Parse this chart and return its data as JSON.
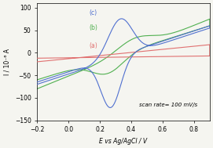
{
  "title": "",
  "xlabel": "E vs Ag/AgCl / V",
  "ylabel": "I / 10⁻⁶ A",
  "xlim": [
    -0.2,
    0.9
  ],
  "ylim": [
    -150,
    110
  ],
  "yticks": [
    -150,
    -100,
    -50,
    0,
    50,
    100
  ],
  "xticks": [
    -0.2,
    0.0,
    0.2,
    0.4,
    0.6,
    0.8
  ],
  "annotation": "scan rate= 100 mV/s",
  "curves": {
    "a": {
      "color": "#e07070",
      "label": "(a)"
    },
    "b": {
      "color": "#50b050",
      "label": "(b)"
    },
    "c": {
      "color": "#5070d0",
      "label": "(c)"
    }
  },
  "background_color": "#f5f5f0"
}
